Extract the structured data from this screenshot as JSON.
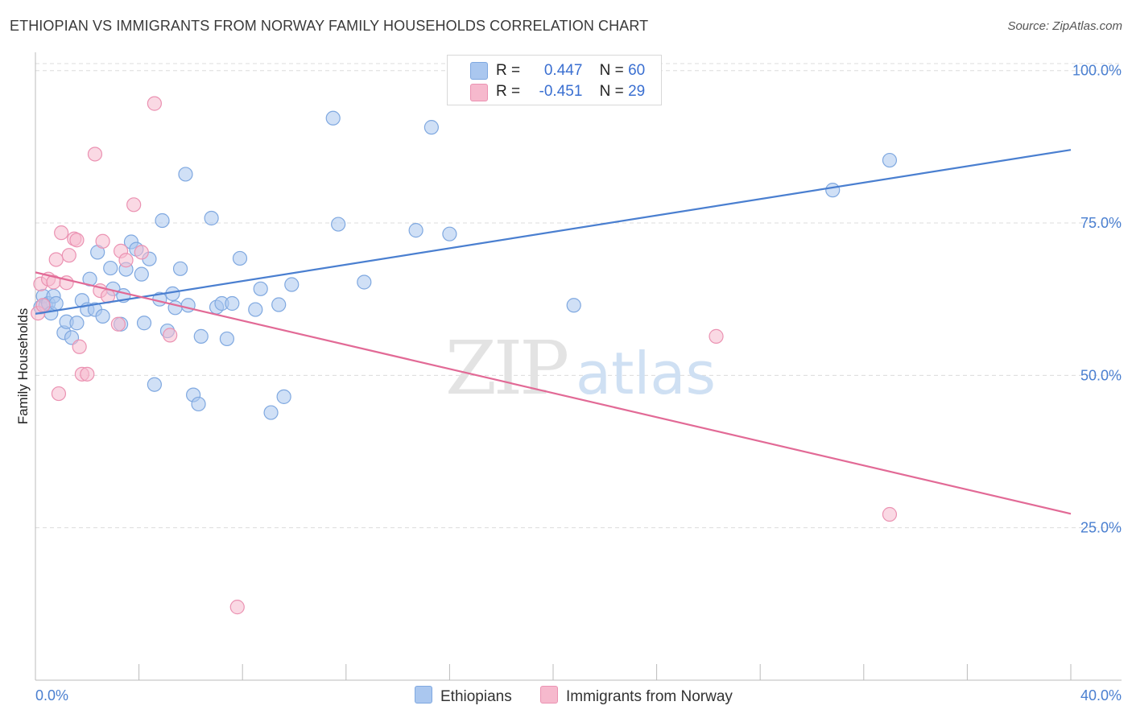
{
  "title": "ETHIOPIAN VS IMMIGRANTS FROM NORWAY FAMILY HOUSEHOLDS CORRELATION CHART",
  "source": "Source: ZipAtlas.com",
  "watermark": {
    "zip": "ZIP",
    "atlas": "atlas"
  },
  "colors": {
    "blue": "#4a7fd0",
    "blue_fill": "#aac7ef",
    "pink": "#e26a96",
    "pink_fill": "#f6b9cd"
  },
  "legend": {
    "r_label": "R =",
    "n_label": "N =",
    "rows": [
      {
        "r": "0.447",
        "n": "60"
      },
      {
        "r": "-0.451",
        "n": "29"
      }
    ]
  },
  "bottom_legend": [
    "Ethiopians",
    "Immigrants from Norway"
  ],
  "chart_data": {
    "type": "scatter",
    "ylabel": "Family Households",
    "xlim": [
      0,
      40
    ],
    "ylim": [
      0,
      103
    ],
    "x_tick_labels": [
      "0.0%",
      "40.0%"
    ],
    "y_ticks": [
      25,
      50,
      75,
      100
    ],
    "y_tick_labels": [
      "25.0%",
      "50.0%",
      "75.0%",
      "100.0%"
    ],
    "grid": true,
    "series": [
      {
        "name": "Ethiopians",
        "color": "#4a7fd0",
        "points": [
          [
            0.2,
            61.2
          ],
          [
            0.3,
            63.0
          ],
          [
            0.4,
            61.5
          ],
          [
            0.5,
            61.8
          ],
          [
            0.6,
            60.2
          ],
          [
            0.7,
            63.0
          ],
          [
            0.8,
            61.8
          ],
          [
            1.1,
            57.0
          ],
          [
            1.2,
            58.8
          ],
          [
            1.4,
            56.2
          ],
          [
            1.6,
            58.6
          ],
          [
            1.8,
            62.3
          ],
          [
            2.0,
            60.8
          ],
          [
            2.1,
            65.8
          ],
          [
            2.3,
            60.8
          ],
          [
            2.4,
            70.2
          ],
          [
            2.6,
            59.7
          ],
          [
            2.9,
            67.6
          ],
          [
            3.0,
            64.2
          ],
          [
            3.3,
            58.4
          ],
          [
            3.4,
            63.1
          ],
          [
            3.5,
            67.4
          ],
          [
            3.7,
            71.9
          ],
          [
            3.9,
            70.7
          ],
          [
            4.1,
            66.6
          ],
          [
            4.2,
            58.6
          ],
          [
            4.4,
            69.1
          ],
          [
            4.6,
            48.5
          ],
          [
            4.8,
            62.5
          ],
          [
            4.9,
            75.4
          ],
          [
            5.1,
            57.3
          ],
          [
            5.3,
            63.4
          ],
          [
            5.4,
            61.1
          ],
          [
            5.6,
            67.5
          ],
          [
            5.8,
            83.0
          ],
          [
            5.9,
            61.5
          ],
          [
            6.1,
            46.8
          ],
          [
            6.3,
            45.3
          ],
          [
            6.4,
            56.4
          ],
          [
            6.8,
            75.8
          ],
          [
            7.0,
            61.2
          ],
          [
            7.2,
            61.8
          ],
          [
            7.4,
            56.0
          ],
          [
            7.6,
            61.8
          ],
          [
            7.9,
            69.2
          ],
          [
            8.5,
            60.8
          ],
          [
            8.7,
            64.2
          ],
          [
            9.1,
            43.9
          ],
          [
            9.4,
            61.6
          ],
          [
            9.6,
            46.5
          ],
          [
            9.9,
            64.9
          ],
          [
            11.5,
            92.2
          ],
          [
            11.7,
            74.8
          ],
          [
            12.7,
            65.3
          ],
          [
            14.7,
            73.8
          ],
          [
            15.3,
            90.7
          ],
          [
            16.0,
            73.2
          ],
          [
            20.8,
            61.5
          ],
          [
            30.8,
            80.4
          ],
          [
            33.0,
            85.3
          ]
        ]
      },
      {
        "name": "Immigrants from Norway",
        "color": "#e26a96",
        "points": [
          [
            0.1,
            60.2
          ],
          [
            0.2,
            65.0
          ],
          [
            0.3,
            61.5
          ],
          [
            0.5,
            65.8
          ],
          [
            0.7,
            65.3
          ],
          [
            0.8,
            69.0
          ],
          [
            0.9,
            47.0
          ],
          [
            1.0,
            73.4
          ],
          [
            1.2,
            65.2
          ],
          [
            1.3,
            69.7
          ],
          [
            1.5,
            72.4
          ],
          [
            1.6,
            72.2
          ],
          [
            1.7,
            54.7
          ],
          [
            1.8,
            50.2
          ],
          [
            2.0,
            50.2
          ],
          [
            2.3,
            86.3
          ],
          [
            2.5,
            63.9
          ],
          [
            2.6,
            72.0
          ],
          [
            2.8,
            63.0
          ],
          [
            3.2,
            58.4
          ],
          [
            3.3,
            70.4
          ],
          [
            3.5,
            68.9
          ],
          [
            3.8,
            78.0
          ],
          [
            4.1,
            70.2
          ],
          [
            4.6,
            94.6
          ],
          [
            5.2,
            56.6
          ],
          [
            7.8,
            12.0
          ],
          [
            26.3,
            56.4
          ],
          [
            33.0,
            27.2
          ]
        ]
      }
    ],
    "trendlines": [
      {
        "series": "Ethiopians",
        "x": [
          0,
          40
        ],
        "y": [
          60.1,
          87.0
        ]
      },
      {
        "series": "Immigrants from Norway",
        "x": [
          0,
          40
        ],
        "y": [
          66.9,
          27.3
        ]
      }
    ]
  }
}
